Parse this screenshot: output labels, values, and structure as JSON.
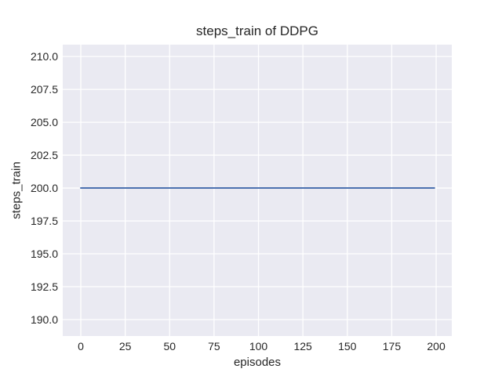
{
  "chart_data": {
    "type": "line",
    "title": "steps_train of DDPG",
    "xlabel": "episodes",
    "ylabel": "steps_train",
    "xlim": [
      -10.15,
      208.8
    ],
    "ylim": [
      188.75,
      210.9
    ],
    "x_ticks": [
      0,
      25,
      50,
      75,
      100,
      125,
      150,
      175,
      200
    ],
    "x_tick_labels": [
      "0",
      "25",
      "50",
      "75",
      "100",
      "125",
      "150",
      "175",
      "200"
    ],
    "y_ticks": [
      190.0,
      192.5,
      195.0,
      197.5,
      200.0,
      202.5,
      205.0,
      207.5,
      210.0
    ],
    "y_tick_labels": [
      "190.0",
      "192.5",
      "195.0",
      "197.5",
      "200.0",
      "202.5",
      "205.0",
      "207.5",
      "210.0"
    ],
    "grid": true,
    "legend": null,
    "series": [
      {
        "name": "steps_train",
        "x": [
          0,
          199
        ],
        "y": [
          200,
          200
        ],
        "color": "#4c72b0"
      }
    ],
    "colors": {
      "axes_background": "#eaeaf2",
      "grid": "#ffffff",
      "text": "#262626",
      "line": "#4c72b0"
    }
  }
}
